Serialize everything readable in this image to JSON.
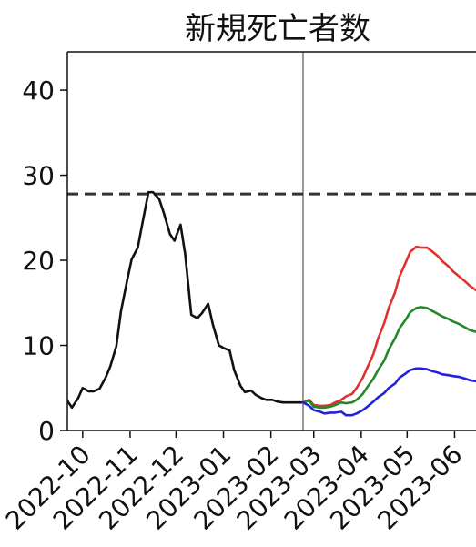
{
  "chart_data": {
    "type": "line",
    "title": "新規死亡者数",
    "xlabel": "",
    "ylabel": "",
    "ylim": [
      0,
      44.5
    ],
    "yticks": [
      0,
      10,
      20,
      30,
      40
    ],
    "xlim": [
      "2022-09-21",
      "2023-06-15"
    ],
    "xticks": [
      "2022-10",
      "2022-11",
      "2022-12",
      "2023-01",
      "2023-02",
      "2023-03",
      "2023-04",
      "2023-05",
      "2023-06"
    ],
    "xtick_dates": [
      "2022-10-01",
      "2022-11-01",
      "2022-12-01",
      "2023-01-01",
      "2023-02-01",
      "2023-03-01",
      "2023-04-01",
      "2023-05-01",
      "2023-06-01"
    ],
    "reference_line": {
      "y": 27.8,
      "style": "dashed",
      "color": "#333333"
    },
    "forecast_start": "2023-02-22",
    "grid": false,
    "legend": "none",
    "series": [
      {
        "color": "#111111",
        "x": [
          "2022-09-21",
          "2022-09-24",
          "2022-09-28",
          "2022-10-01",
          "2022-10-05",
          "2022-10-08",
          "2022-10-12",
          "2022-10-16",
          "2022-10-19",
          "2022-10-23",
          "2022-10-26",
          "2022-10-30",
          "2022-11-02",
          "2022-11-06",
          "2022-11-09",
          "2022-11-13",
          "2022-11-16",
          "2022-11-20",
          "2022-11-23",
          "2022-11-27",
          "2022-11-30",
          "2022-12-04",
          "2022-12-07",
          "2022-12-11",
          "2022-12-15",
          "2022-12-18",
          "2022-12-22",
          "2022-12-25",
          "2022-12-29",
          "2023-01-01",
          "2023-01-05",
          "2023-01-08",
          "2023-01-12",
          "2023-01-15",
          "2023-01-19",
          "2023-01-22",
          "2023-01-26",
          "2023-01-29",
          "2023-02-02",
          "2023-02-05",
          "2023-02-09",
          "2023-02-12",
          "2023-02-16",
          "2023-02-19",
          "2023-02-22"
        ],
        "values": [
          3.5,
          2.7,
          3.8,
          5.0,
          4.6,
          4.6,
          4.9,
          6.2,
          7.5,
          9.9,
          14.0,
          17.6,
          20.1,
          21.5,
          24.3,
          28.0,
          28.0,
          27.2,
          25.6,
          23.1,
          22.3,
          24.2,
          20.7,
          13.6,
          13.2,
          13.8,
          14.9,
          12.5,
          10.0,
          9.7,
          9.4,
          7.1,
          5.3,
          4.5,
          4.7,
          4.2,
          3.8,
          3.6,
          3.6,
          3.4,
          3.3,
          3.3,
          3.3,
          3.3,
          3.3
        ]
      },
      {
        "color": "#e03030",
        "x": [
          "2023-02-22",
          "2023-02-26",
          "2023-03-01",
          "2023-03-05",
          "2023-03-08",
          "2023-03-12",
          "2023-03-15",
          "2023-03-19",
          "2023-03-22",
          "2023-03-26",
          "2023-03-29",
          "2023-04-02",
          "2023-04-05",
          "2023-04-09",
          "2023-04-12",
          "2023-04-16",
          "2023-04-19",
          "2023-04-23",
          "2023-04-26",
          "2023-04-30",
          "2023-05-03",
          "2023-05-07",
          "2023-05-10",
          "2023-05-14",
          "2023-05-17",
          "2023-05-21",
          "2023-05-24",
          "2023-05-28",
          "2023-05-31",
          "2023-06-04",
          "2023-06-08",
          "2023-06-11",
          "2023-06-15"
        ],
        "values": [
          3.3,
          3.6,
          3.0,
          2.9,
          2.9,
          3.0,
          3.3,
          3.6,
          4.0,
          4.3,
          5.0,
          6.2,
          7.4,
          9.0,
          10.8,
          12.6,
          14.4,
          16.2,
          18.1,
          19.7,
          21.0,
          21.6,
          21.5,
          21.5,
          21.1,
          20.5,
          19.9,
          19.3,
          18.7,
          18.1,
          17.5,
          17.0,
          16.5
        ]
      },
      {
        "color": "#22882a",
        "x": [
          "2023-02-22",
          "2023-02-26",
          "2023-03-01",
          "2023-03-05",
          "2023-03-08",
          "2023-03-12",
          "2023-03-15",
          "2023-03-19",
          "2023-03-22",
          "2023-03-26",
          "2023-03-29",
          "2023-04-02",
          "2023-04-05",
          "2023-04-09",
          "2023-04-12",
          "2023-04-16",
          "2023-04-19",
          "2023-04-23",
          "2023-04-26",
          "2023-04-30",
          "2023-05-03",
          "2023-05-07",
          "2023-05-10",
          "2023-05-14",
          "2023-05-17",
          "2023-05-21",
          "2023-05-24",
          "2023-05-28",
          "2023-05-31",
          "2023-06-04",
          "2023-06-08",
          "2023-06-11",
          "2023-06-15"
        ],
        "values": [
          3.3,
          3.5,
          2.8,
          2.7,
          2.7,
          2.8,
          3.0,
          3.3,
          3.2,
          3.3,
          3.6,
          4.3,
          5.1,
          6.1,
          7.1,
          8.2,
          9.5,
          10.8,
          12.0,
          13.0,
          13.9,
          14.4,
          14.5,
          14.4,
          14.1,
          13.7,
          13.4,
          13.1,
          12.8,
          12.5,
          12.1,
          11.8,
          11.6
        ]
      },
      {
        "color": "#2222dd",
        "x": [
          "2023-02-22",
          "2023-02-26",
          "2023-03-01",
          "2023-03-05",
          "2023-03-08",
          "2023-03-12",
          "2023-03-15",
          "2023-03-19",
          "2023-03-22",
          "2023-03-26",
          "2023-03-29",
          "2023-04-02",
          "2023-04-05",
          "2023-04-09",
          "2023-04-12",
          "2023-04-16",
          "2023-04-19",
          "2023-04-23",
          "2023-04-26",
          "2023-04-30",
          "2023-05-03",
          "2023-05-07",
          "2023-05-10",
          "2023-05-14",
          "2023-05-17",
          "2023-05-21",
          "2023-05-24",
          "2023-05-28",
          "2023-05-31",
          "2023-06-04",
          "2023-06-08",
          "2023-06-11",
          "2023-06-15"
        ],
        "values": [
          3.3,
          2.9,
          2.4,
          2.2,
          2.0,
          2.1,
          2.1,
          2.2,
          1.8,
          1.8,
          2.0,
          2.4,
          2.8,
          3.4,
          3.9,
          4.4,
          5.0,
          5.5,
          6.2,
          6.7,
          7.1,
          7.3,
          7.3,
          7.2,
          7.0,
          6.8,
          6.6,
          6.5,
          6.4,
          6.3,
          6.1,
          5.9,
          5.8
        ]
      }
    ]
  }
}
